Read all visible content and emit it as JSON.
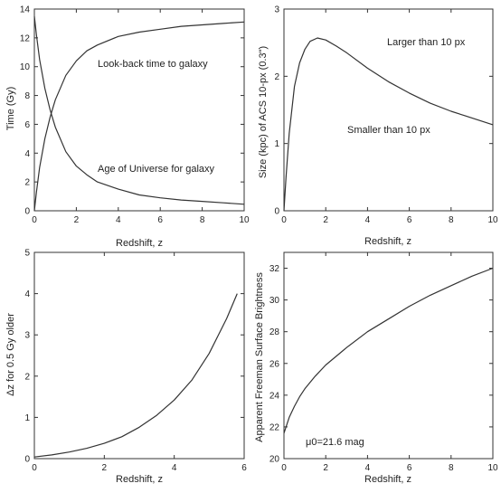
{
  "chart_data": [
    {
      "type": "line",
      "xlabel": "Redshift, z",
      "ylabel": "Time (Gy)",
      "xlim": [
        0,
        10
      ],
      "ylim": [
        0,
        14
      ],
      "xticks": [
        0,
        2,
        4,
        6,
        8,
        10
      ],
      "yticks": [
        0,
        2,
        4,
        6,
        8,
        10,
        12,
        14
      ],
      "grid": false,
      "series": [
        {
          "name": "Look-back time to galaxy",
          "x": [
            0,
            0.1,
            0.25,
            0.5,
            0.75,
            1,
            1.5,
            2,
            2.5,
            3,
            4,
            5,
            6,
            7,
            8,
            9,
            10
          ],
          "y": [
            0,
            1.3,
            3.0,
            5.0,
            6.5,
            7.7,
            9.4,
            10.4,
            11.1,
            11.5,
            12.1,
            12.4,
            12.6,
            12.8,
            12.9,
            13.0,
            13.1
          ]
        },
        {
          "name": "Age of Universe for galaxy",
          "x": [
            0,
            0.1,
            0.25,
            0.5,
            0.75,
            1,
            1.5,
            2,
            2.5,
            3,
            4,
            5,
            6,
            7,
            8,
            9,
            10
          ],
          "y": [
            13.5,
            12.2,
            10.5,
            8.5,
            7.0,
            5.8,
            4.1,
            3.1,
            2.5,
            2.0,
            1.5,
            1.1,
            0.9,
            0.75,
            0.65,
            0.55,
            0.45
          ]
        }
      ],
      "annotations": [
        "Look-back time to galaxy",
        "Age of Universe for galaxy"
      ]
    },
    {
      "type": "line",
      "xlabel": "Redshift, z",
      "ylabel": "Size (kpc) of ACS 10-px (0.3\")",
      "xlim": [
        0,
        10
      ],
      "ylim": [
        0,
        3
      ],
      "xticks": [
        0,
        2,
        4,
        6,
        8,
        10
      ],
      "yticks": [
        0,
        1,
        2,
        3
      ],
      "grid": false,
      "series": [
        {
          "x": [
            0,
            0.1,
            0.25,
            0.5,
            0.75,
            1,
            1.25,
            1.6,
            2,
            2.5,
            3,
            4,
            5,
            6,
            7,
            8,
            9,
            10
          ],
          "y": [
            0,
            0.5,
            1.15,
            1.85,
            2.2,
            2.4,
            2.52,
            2.57,
            2.54,
            2.45,
            2.35,
            2.12,
            1.92,
            1.75,
            1.6,
            1.48,
            1.38,
            1.28
          ]
        }
      ],
      "annotations": [
        "Larger than 10 px",
        "Smaller than 10 px"
      ]
    },
    {
      "type": "line",
      "xlabel": "Redshift, z",
      "ylabel": "Δz for 0.5 Gy older",
      "xlim": [
        0,
        6
      ],
      "ylim": [
        0,
        5
      ],
      "xticks": [
        0,
        2,
        4,
        6
      ],
      "yticks": [
        0,
        1,
        2,
        3,
        4,
        5
      ],
      "grid": false,
      "series": [
        {
          "x": [
            0,
            0.5,
            1,
            1.5,
            2,
            2.5,
            3,
            3.5,
            4,
            4.5,
            5,
            5.5,
            5.8
          ],
          "y": [
            0.04,
            0.09,
            0.16,
            0.25,
            0.37,
            0.53,
            0.76,
            1.05,
            1.42,
            1.9,
            2.55,
            3.4,
            4.0
          ]
        }
      ]
    },
    {
      "type": "line",
      "xlabel": "Redshift, z",
      "ylabel": "Apparent Freeman Surface Brightness",
      "xlim": [
        0,
        10
      ],
      "ylim": [
        20,
        33
      ],
      "xticks": [
        0,
        2,
        4,
        6,
        8,
        10
      ],
      "yticks": [
        20,
        22,
        24,
        26,
        28,
        30,
        32
      ],
      "grid": false,
      "series": [
        {
          "x": [
            0,
            0.25,
            0.5,
            0.75,
            1,
            1.5,
            2,
            3,
            4,
            5,
            6,
            7,
            8,
            9,
            10
          ],
          "y": [
            21.6,
            22.6,
            23.3,
            23.9,
            24.4,
            25.2,
            25.9,
            27.0,
            28.0,
            28.8,
            29.6,
            30.3,
            30.9,
            31.5,
            32.0
          ]
        }
      ],
      "annotations": [
        "μ0=21.6 mag"
      ]
    }
  ]
}
